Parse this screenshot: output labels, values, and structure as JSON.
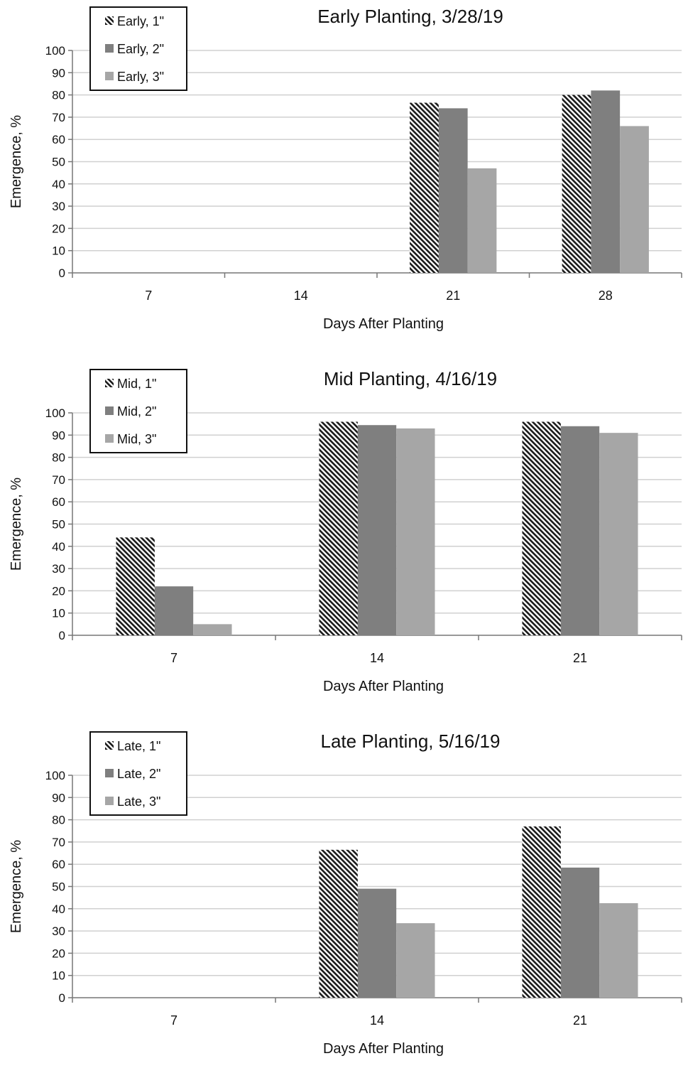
{
  "chart_data": [
    {
      "type": "bar",
      "title": "Early Planting, 3/28/19",
      "xlabel": "Days After Planting",
      "ylabel": "Emergence, %",
      "ylim": [
        0,
        100
      ],
      "yticks": [
        0,
        10,
        20,
        30,
        40,
        50,
        60,
        70,
        80,
        90,
        100
      ],
      "grid": true,
      "legend": "top-left",
      "categories": [
        "7",
        "14",
        "21",
        "28"
      ],
      "series": [
        {
          "name": "Early, 1\"",
          "values": [
            0,
            0,
            76.5,
            80
          ],
          "pattern": "hatch",
          "color": "#1a1a1a"
        },
        {
          "name": "Early, 2\"",
          "values": [
            0,
            0,
            74,
            82
          ],
          "pattern": "solid",
          "color": "#7f7f7f"
        },
        {
          "name": "Early, 3\"",
          "values": [
            0,
            0,
            47,
            66
          ],
          "pattern": "solid",
          "color": "#a6a6a6"
        }
      ]
    },
    {
      "type": "bar",
      "title": "Mid Planting, 4/16/19",
      "xlabel": "Days After Planting",
      "ylabel": "Emergence, %",
      "ylim": [
        0,
        100
      ],
      "yticks": [
        0,
        10,
        20,
        30,
        40,
        50,
        60,
        70,
        80,
        90,
        100
      ],
      "grid": true,
      "legend": "top-left",
      "categories": [
        "7",
        "14",
        "21"
      ],
      "series": [
        {
          "name": "Mid, 1\"",
          "values": [
            44,
            96,
            96
          ],
          "pattern": "hatch",
          "color": "#1a1a1a"
        },
        {
          "name": "Mid, 2\"",
          "values": [
            22,
            94.5,
            94
          ],
          "pattern": "solid",
          "color": "#7f7f7f"
        },
        {
          "name": "Mid, 3\"",
          "values": [
            5,
            93,
            91
          ],
          "pattern": "solid",
          "color": "#a6a6a6"
        }
      ]
    },
    {
      "type": "bar",
      "title": "Late Planting, 5/16/19",
      "xlabel": "Days After Planting",
      "ylabel": "Emergence, %",
      "ylim": [
        0,
        100
      ],
      "yticks": [
        0,
        10,
        20,
        30,
        40,
        50,
        60,
        70,
        80,
        90,
        100
      ],
      "grid": true,
      "legend": "top-left",
      "categories": [
        "7",
        "14",
        "21"
      ],
      "series": [
        {
          "name": "Late, 1\"",
          "values": [
            0,
            66.5,
            77
          ],
          "pattern": "hatch",
          "color": "#1a1a1a"
        },
        {
          "name": "Late, 2\"",
          "values": [
            0,
            49,
            58.5
          ],
          "pattern": "solid",
          "color": "#7f7f7f"
        },
        {
          "name": "Late, 3\"",
          "values": [
            0,
            33.5,
            42.5
          ],
          "pattern": "solid",
          "color": "#a6a6a6"
        }
      ]
    }
  ]
}
